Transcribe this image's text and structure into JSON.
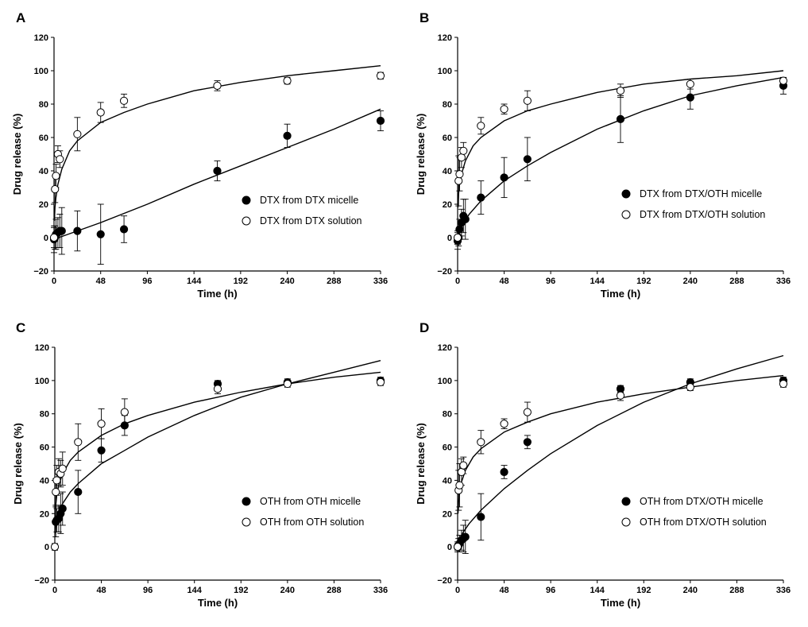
{
  "chart_data": [
    {
      "panel": "A",
      "type": "scatter",
      "xlabel": "Time (h)",
      "ylabel": "Drug release (%)",
      "xlim": [
        0,
        336
      ],
      "ylim": [
        -20,
        120
      ],
      "xticks": [
        0,
        48,
        96,
        144,
        192,
        240,
        288,
        336
      ],
      "yticks": [
        -20,
        0,
        20,
        40,
        60,
        80,
        100,
        120
      ],
      "legend_position": "lower-right",
      "series": [
        {
          "name": "DTX from DTX micelle",
          "marker": "filled",
          "x": [
            0,
            1,
            2,
            4,
            6,
            8,
            24,
            48,
            72,
            168,
            240,
            336
          ],
          "y": [
            -1,
            0,
            2,
            3,
            4,
            4,
            4,
            2,
            5,
            40,
            61,
            70
          ],
          "err": [
            8,
            7,
            9,
            9,
            10,
            14,
            12,
            18,
            8,
            6,
            7,
            6
          ],
          "fit": [
            [
              0,
              -1
            ],
            [
              48,
              9
            ],
            [
              96,
              20
            ],
            [
              144,
              32
            ],
            [
              192,
              43
            ],
            [
              240,
              54
            ],
            [
              288,
              65
            ],
            [
              336,
              77
            ]
          ]
        },
        {
          "name": "DTX from DTX solution",
          "marker": "open",
          "x": [
            0,
            1,
            2,
            4,
            6,
            24,
            48,
            72,
            168,
            240,
            336
          ],
          "y": [
            0,
            29,
            37,
            50,
            47,
            62,
            75,
            82,
            91,
            94,
            97
          ],
          "err": [
            6,
            8,
            7,
            5,
            5,
            10,
            6,
            4,
            3,
            2,
            2
          ],
          "fit": [
            [
              0.4,
              10
            ],
            [
              1,
              18
            ],
            [
              2,
              24
            ],
            [
              4,
              32
            ],
            [
              8,
              41
            ],
            [
              16,
              52
            ],
            [
              24,
              58
            ],
            [
              48,
              69
            ],
            [
              72,
              75
            ],
            [
              96,
              80
            ],
            [
              144,
              88
            ],
            [
              192,
              93
            ],
            [
              240,
              97
            ],
            [
              288,
              100
            ],
            [
              336,
              103
            ]
          ]
        }
      ]
    },
    {
      "panel": "B",
      "type": "scatter",
      "xlabel": "Time (h)",
      "ylabel": "Drug release (%)",
      "xlim": [
        0,
        336
      ],
      "ylim": [
        -20,
        120
      ],
      "xticks": [
        0,
        48,
        96,
        144,
        192,
        240,
        288,
        336
      ],
      "yticks": [
        -20,
        0,
        20,
        40,
        60,
        80,
        100,
        120
      ],
      "legend_position": "lower-right",
      "series": [
        {
          "name": "DTX from DTX/OTH micelle",
          "marker": "filled",
          "x": [
            0,
            1,
            2,
            4,
            6,
            8,
            24,
            48,
            72,
            168,
            240,
            336
          ],
          "y": [
            -2,
            0,
            5,
            9,
            13,
            11,
            24,
            36,
            47,
            71,
            84,
            91
          ],
          "err": [
            5,
            5,
            6,
            8,
            10,
            12,
            10,
            12,
            13,
            14,
            7,
            5
          ],
          "fit": [
            [
              0,
              0
            ],
            [
              2,
              4
            ],
            [
              6,
              9
            ],
            [
              12,
              14
            ],
            [
              24,
              22
            ],
            [
              48,
              34
            ],
            [
              72,
              43
            ],
            [
              96,
              51
            ],
            [
              144,
              65
            ],
            [
              192,
              76
            ],
            [
              240,
              85
            ],
            [
              288,
              91
            ],
            [
              336,
              96
            ]
          ]
        },
        {
          "name": "DTX from DTX/OTH solution",
          "marker": "open",
          "x": [
            0,
            1,
            2,
            4,
            6,
            24,
            48,
            72,
            168,
            240,
            336
          ],
          "y": [
            0,
            34,
            38,
            48,
            52,
            67,
            77,
            82,
            88,
            92,
            94
          ],
          "err": [
            4,
            15,
            10,
            6,
            5,
            5,
            3,
            6,
            4,
            3,
            2
          ],
          "fit": [
            [
              0.4,
              18
            ],
            [
              1,
              26
            ],
            [
              2,
              32
            ],
            [
              4,
              38
            ],
            [
              8,
              46
            ],
            [
              16,
              55
            ],
            [
              24,
              60
            ],
            [
              48,
              70
            ],
            [
              72,
              76
            ],
            [
              96,
              80
            ],
            [
              144,
              87
            ],
            [
              192,
              92
            ],
            [
              240,
              95
            ],
            [
              288,
              97
            ],
            [
              336,
              100
            ]
          ]
        }
      ]
    },
    {
      "panel": "C",
      "type": "scatter",
      "xlabel": "Time (h)",
      "ylabel": "Drug release (%)",
      "xlim": [
        0,
        336
      ],
      "ylim": [
        -20,
        120
      ],
      "xticks": [
        0,
        48,
        96,
        144,
        192,
        240,
        288,
        336
      ],
      "yticks": [
        -20,
        0,
        20,
        40,
        60,
        80,
        100,
        120
      ],
      "legend_position": "lower-right",
      "series": [
        {
          "name": "OTH from OTH micelle",
          "marker": "filled",
          "x": [
            1,
            2,
            4,
            6,
            8,
            24,
            48,
            72,
            168,
            240,
            336
          ],
          "y": [
            15,
            16,
            17,
            20,
            23,
            33,
            58,
            73,
            98,
            99,
            100
          ],
          "err": [
            9,
            7,
            8,
            12,
            10,
            13,
            7,
            6,
            2,
            2,
            2
          ],
          "fit": [
            [
              0.5,
              8
            ],
            [
              1,
              12
            ],
            [
              2,
              16
            ],
            [
              4,
              21
            ],
            [
              8,
              26
            ],
            [
              16,
              33
            ],
            [
              24,
              38
            ],
            [
              48,
              50
            ],
            [
              72,
              58
            ],
            [
              96,
              66
            ],
            [
              144,
              79
            ],
            [
              192,
              90
            ],
            [
              240,
              98
            ],
            [
              288,
              105
            ],
            [
              336,
              112
            ]
          ]
        },
        {
          "name": "OTH from OTH solution",
          "marker": "open",
          "x": [
            0,
            1,
            2,
            4,
            6,
            8,
            24,
            48,
            72,
            168,
            240,
            336
          ],
          "y": [
            0,
            33,
            40,
            45,
            44,
            47,
            63,
            74,
            81,
            95,
            98,
            99
          ],
          "err": [
            2,
            8,
            9,
            8,
            8,
            10,
            11,
            9,
            8,
            3,
            2,
            2
          ],
          "fit": [
            [
              0.4,
              18
            ],
            [
              1,
              25
            ],
            [
              2,
              31
            ],
            [
              4,
              37
            ],
            [
              8,
              44
            ],
            [
              16,
              52
            ],
            [
              24,
              57
            ],
            [
              48,
              67
            ],
            [
              72,
              74
            ],
            [
              96,
              79
            ],
            [
              144,
              87
            ],
            [
              192,
              93
            ],
            [
              240,
              98
            ],
            [
              288,
              102
            ],
            [
              336,
              105
            ]
          ]
        }
      ]
    },
    {
      "panel": "D",
      "type": "scatter",
      "xlabel": "Time (h)",
      "ylabel": "Drug release (%)",
      "xlim": [
        0,
        336
      ],
      "ylim": [
        -20,
        120
      ],
      "xticks": [
        0,
        48,
        96,
        144,
        192,
        240,
        288,
        336
      ],
      "yticks": [
        -20,
        0,
        20,
        40,
        60,
        80,
        100,
        120
      ],
      "legend_position": "lower-right",
      "series": [
        {
          "name": "OTH from DTX/OTH micelle",
          "marker": "filled",
          "x": [
            0,
            1,
            2,
            4,
            6,
            8,
            24,
            48,
            72,
            168,
            240,
            336
          ],
          "y": [
            0,
            1,
            2,
            4,
            5,
            6,
            18,
            45,
            63,
            95,
            99,
            100
          ],
          "err": [
            3,
            4,
            5,
            6,
            8,
            10,
            14,
            4,
            4,
            2,
            2,
            2
          ],
          "fit": [
            [
              0,
              0
            ],
            [
              2,
              5
            ],
            [
              6,
              9
            ],
            [
              12,
              14
            ],
            [
              24,
              22
            ],
            [
              48,
              35
            ],
            [
              72,
              46
            ],
            [
              96,
              56
            ],
            [
              144,
              73
            ],
            [
              192,
              87
            ],
            [
              240,
              98
            ],
            [
              288,
              107
            ],
            [
              336,
              115
            ]
          ]
        },
        {
          "name": "OTH from DTX/OTH solution",
          "marker": "open",
          "x": [
            0,
            1,
            2,
            4,
            6,
            24,
            48,
            72,
            168,
            240,
            336
          ],
          "y": [
            0,
            34,
            37,
            45,
            49,
            63,
            74,
            81,
            91,
            96,
            98
          ],
          "err": [
            2,
            12,
            13,
            8,
            5,
            7,
            3,
            6,
            3,
            2,
            2
          ],
          "fit": [
            [
              0.4,
              20
            ],
            [
              1,
              27
            ],
            [
              2,
              33
            ],
            [
              4,
              39
            ],
            [
              8,
              46
            ],
            [
              16,
              54
            ],
            [
              24,
              59
            ],
            [
              48,
              69
            ],
            [
              72,
              75
            ],
            [
              96,
              80
            ],
            [
              144,
              87
            ],
            [
              192,
              92
            ],
            [
              240,
              96
            ],
            [
              288,
              100
            ],
            [
              336,
              103
            ]
          ]
        }
      ]
    }
  ]
}
